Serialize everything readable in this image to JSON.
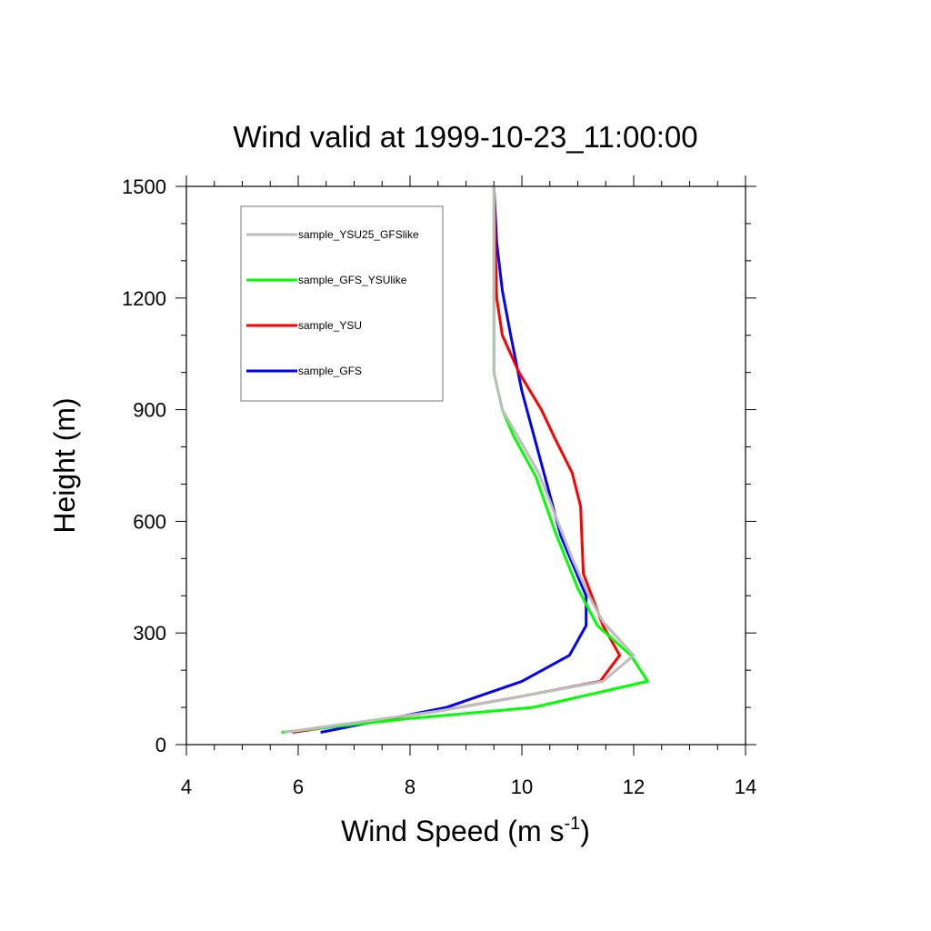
{
  "chart_data": {
    "type": "line",
    "title": "Wind valid at 1999-10-23_11:00:00",
    "xlabel": "Wind Speed (m s",
    "xlabel_superscript": "-1",
    "xlabel_suffix": ")",
    "ylabel": "Height (m)",
    "xlim": [
      4,
      14
    ],
    "ylim": [
      0,
      1500
    ],
    "x_ticks": [
      4,
      6,
      8,
      10,
      12,
      14
    ],
    "y_ticks": [
      0,
      300,
      600,
      900,
      1200,
      1500
    ],
    "x_tick_labels": [
      "4",
      "6",
      "8",
      "10",
      "12",
      "14"
    ],
    "y_tick_labels": [
      "0",
      "300",
      "600",
      "900",
      "1200",
      "1500"
    ],
    "grid": false,
    "legend_position": "top-left",
    "series": [
      {
        "name": "sample_YSU25_GFSlike",
        "color": "#bdbdbd",
        "points": [
          [
            5.75,
            33
          ],
          [
            8.5,
            90
          ],
          [
            10.0,
            130
          ],
          [
            11.45,
            170
          ],
          [
            12.0,
            240
          ],
          [
            11.45,
            330
          ],
          [
            11.2,
            400
          ],
          [
            10.9,
            500
          ],
          [
            10.3,
            730
          ],
          [
            9.65,
            900
          ],
          [
            9.5,
            1000
          ],
          [
            9.5,
            1200
          ],
          [
            9.5,
            1500
          ]
        ]
      },
      {
        "name": "sample_GFS_YSUlike",
        "color": "#00ff00",
        "points": [
          [
            5.7,
            33
          ],
          [
            8.0,
            70
          ],
          [
            10.2,
            100
          ],
          [
            12.25,
            170
          ],
          [
            11.95,
            240
          ],
          [
            11.35,
            320
          ],
          [
            11.0,
            420
          ],
          [
            10.6,
            570
          ],
          [
            10.25,
            720
          ],
          [
            9.85,
            830
          ],
          [
            9.65,
            900
          ],
          [
            9.5,
            1000
          ],
          [
            9.5,
            1200
          ],
          [
            9.5,
            1500
          ]
        ]
      },
      {
        "name": "sample_YSU",
        "color": "#ff0000",
        "points": [
          [
            5.9,
            33
          ],
          [
            8.5,
            90
          ],
          [
            10.0,
            130
          ],
          [
            11.4,
            170
          ],
          [
            11.75,
            240
          ],
          [
            11.45,
            320
          ],
          [
            11.1,
            460
          ],
          [
            11.05,
            640
          ],
          [
            10.9,
            730
          ],
          [
            10.6,
            820
          ],
          [
            10.35,
            900
          ],
          [
            9.95,
            1000
          ],
          [
            9.65,
            1100
          ],
          [
            9.55,
            1200
          ],
          [
            9.5,
            1500
          ]
        ]
      },
      {
        "name": "sample_GFS",
        "color": "#0000ff",
        "points": [
          [
            6.4,
            33
          ],
          [
            8.65,
            100
          ],
          [
            10.0,
            170
          ],
          [
            10.85,
            240
          ],
          [
            11.15,
            320
          ],
          [
            11.15,
            400
          ],
          [
            10.7,
            560
          ],
          [
            10.0,
            950
          ],
          [
            9.8,
            1100
          ],
          [
            9.65,
            1220
          ],
          [
            9.55,
            1350
          ],
          [
            9.5,
            1500
          ]
        ]
      }
    ]
  }
}
